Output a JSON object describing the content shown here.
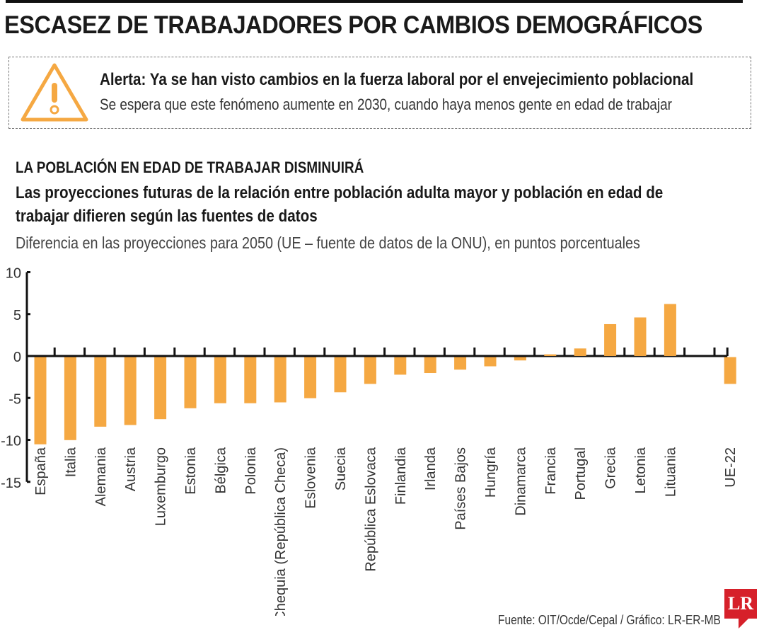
{
  "header": {
    "title": "ESCASEZ DE TRABAJADORES POR CAMBIOS DEMOGRÁFICOS"
  },
  "alert": {
    "icon": "warning-triangle-icon",
    "heading": "Alerta: Ya se han visto cambios en la fuerza laboral por el envejecimiento poblacional",
    "text": "Se espera que este fenómeno aumente en 2030, cuando haya menos gente en edad de trabajar",
    "color": "#f5a842"
  },
  "chart_header": {
    "kicker": "LA POBLACIÓN EN EDAD  DE TRABAJAR DISMINUIRÁ",
    "title": "Las proyecciones futuras de la relación entre población adulta mayor y población en edad de trabajar difieren según las fuentes de datos",
    "subtitle": "Diferencia en las proyecciones para 2050 (UE – fuente de datos de la ONU), en puntos porcentuales"
  },
  "chart_data": {
    "type": "bar",
    "title": "Las proyecciones futuras de la relación entre población adulta mayor y población en edad de trabajar difieren según las fuentes de datos",
    "subtitle": "Diferencia en las proyecciones para 2050 (UE – fuente de datos de la ONU), en puntos porcentuales",
    "categories": [
      "España",
      "Italia",
      "Alemania",
      "Austria",
      "Luxemburgo",
      "Estonia",
      "Bélgica",
      "Polonia",
      "Chequia (República Checa)",
      "Eslovenia",
      "Suecia",
      "República Eslovaca",
      "Finlandia",
      "Irlanda",
      "Países Bajos",
      "Hungría",
      "Dinamarca",
      "Francia",
      "Portugal",
      "Grecia",
      "Letonia",
      "Lituania",
      "UE-22"
    ],
    "values": [
      -10.4,
      -9.9,
      -8.3,
      -8.1,
      -7.4,
      -6.1,
      -5.5,
      -5.5,
      -5.4,
      -4.9,
      -4.2,
      -3.2,
      -2.1,
      -1.9,
      -1.5,
      -1.1,
      -0.4,
      0.2,
      0.9,
      3.8,
      4.6,
      6.2,
      -3.2
    ],
    "ylim": [
      -15,
      10
    ],
    "yticks": [
      "10",
      "5",
      "0",
      "-5",
      "-10",
      "-15"
    ],
    "grid": false,
    "bar_color": "#f5a842"
  },
  "footer": {
    "source": "Fuente: OIT/Ocde/Cepal / Gráfico: LR-ER-MB",
    "logo": "LR"
  }
}
